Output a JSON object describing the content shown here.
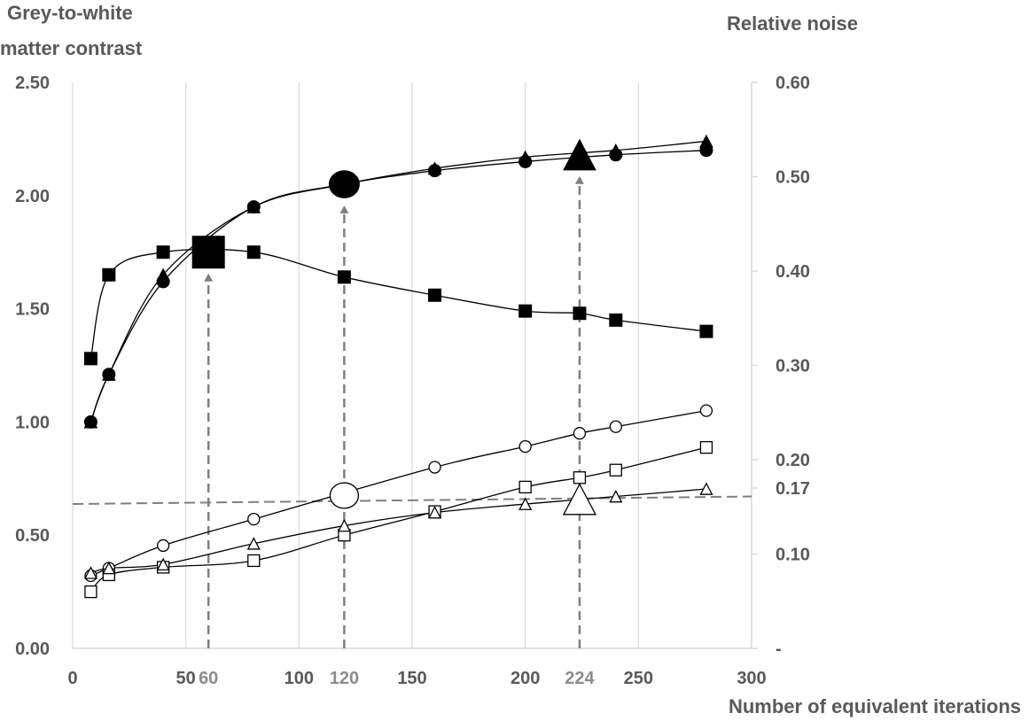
{
  "chart_data": {
    "type": "line",
    "left_axis_title_line1": "Grey-to-white",
    "left_axis_title_line2": "matter contrast",
    "right_axis_title": "Relative noise",
    "xlabel": "Number of equivalent iterations",
    "xlim": [
      0,
      300
    ],
    "ylim_left": [
      0,
      2.5
    ],
    "ylim_right": [
      0,
      0.6
    ],
    "x_ticks": [
      {
        "v": 0,
        "label": "0"
      },
      {
        "v": 50,
        "label": "50"
      },
      {
        "v": 60,
        "label": "60",
        "highlight": true
      },
      {
        "v": 100,
        "label": "100"
      },
      {
        "v": 120,
        "label": "120",
        "highlight": true
      },
      {
        "v": 150,
        "label": "150"
      },
      {
        "v": 200,
        "label": "200"
      },
      {
        "v": 224,
        "label": "224",
        "highlight": true
      },
      {
        "v": 250,
        "label": "250"
      },
      {
        "v": 300,
        "label": "300"
      }
    ],
    "y_left_ticks": [
      {
        "v": 0,
        "label": "0.00"
      },
      {
        "v": 0.5,
        "label": "0.50"
      },
      {
        "v": 1.0,
        "label": "1.00"
      },
      {
        "v": 1.5,
        "label": "1.50"
      },
      {
        "v": 2.0,
        "label": "2.00"
      },
      {
        "v": 2.5,
        "label": "2.50"
      }
    ],
    "y_right_ticks": [
      {
        "v": 0,
        "label": "-"
      },
      {
        "v": 0.1,
        "label": "0.10"
      },
      {
        "v": 0.17,
        "label": "0.17"
      },
      {
        "v": 0.2,
        "label": "0.20"
      },
      {
        "v": 0.3,
        "label": "0.30"
      },
      {
        "v": 0.4,
        "label": "0.40"
      },
      {
        "v": 0.5,
        "label": "0.50"
      },
      {
        "v": 0.6,
        "label": "0.60"
      }
    ],
    "grid": "vertical",
    "series": [
      {
        "axis": "left",
        "marker": "square",
        "filled": true,
        "x": [
          8,
          16,
          40,
          80,
          120,
          160,
          200,
          224,
          240,
          280
        ],
        "y": [
          1.28,
          1.65,
          1.75,
          1.75,
          1.64,
          1.56,
          1.49,
          1.48,
          1.45,
          1.4
        ]
      },
      {
        "axis": "left",
        "marker": "circle",
        "filled": true,
        "x": [
          8,
          16,
          40,
          80,
          120,
          160,
          200,
          240,
          280
        ],
        "y": [
          1.0,
          1.21,
          1.62,
          1.95,
          2.05,
          2.11,
          2.15,
          2.18,
          2.2
        ]
      },
      {
        "axis": "left",
        "marker": "triangle",
        "filled": true,
        "x": [
          8,
          16,
          40,
          80,
          120,
          160,
          200,
          240,
          280
        ],
        "y": [
          1.0,
          1.21,
          1.65,
          1.95,
          2.05,
          2.12,
          2.17,
          2.2,
          2.24
        ]
      },
      {
        "axis": "right",
        "marker": "circle",
        "filled": false,
        "x": [
          8,
          16,
          40,
          80,
          160,
          200,
          224,
          240,
          280
        ],
        "y": [
          0.077,
          0.085,
          0.109,
          0.137,
          0.192,
          0.214,
          0.228,
          0.235,
          0.252
        ]
      },
      {
        "axis": "right",
        "marker": "square",
        "filled": false,
        "x": [
          8,
          16,
          40,
          80,
          120,
          160,
          200,
          224,
          240,
          280
        ],
        "y": [
          0.06,
          0.078,
          0.086,
          0.093,
          0.12,
          0.145,
          0.171,
          0.181,
          0.189,
          0.213
        ]
      },
      {
        "axis": "right",
        "marker": "triangle",
        "filled": false,
        "x": [
          8,
          16,
          40,
          80,
          120,
          160,
          200,
          240,
          280
        ],
        "y": [
          0.08,
          0.085,
          0.089,
          0.111,
          0.13,
          0.144,
          0.153,
          0.161,
          0.169
        ]
      }
    ],
    "optimal_points": [
      {
        "x": 60,
        "y": 1.75,
        "axis": "left",
        "marker": "square",
        "filled": true
      },
      {
        "x": 120,
        "y": 2.05,
        "axis": "left",
        "marker": "circle",
        "filled": true
      },
      {
        "x": 224,
        "y": 2.18,
        "axis": "left",
        "marker": "triangle",
        "filled": true
      },
      {
        "x": 120,
        "y": 0.162,
        "axis": "right",
        "marker": "circle",
        "filled": false
      },
      {
        "x": 224,
        "y": 0.158,
        "axis": "right",
        "marker": "triangle",
        "filled": false
      }
    ],
    "vertical_guides": [
      60,
      120,
      224
    ],
    "threshold_line": {
      "axis": "right",
      "x": [
        0,
        300
      ],
      "y": [
        0.153,
        0.161
      ]
    },
    "colors": {
      "axis_text": "#595959",
      "grid": "#d9d9d9",
      "guide": "#7f7f7f",
      "marker": "#000000"
    }
  }
}
